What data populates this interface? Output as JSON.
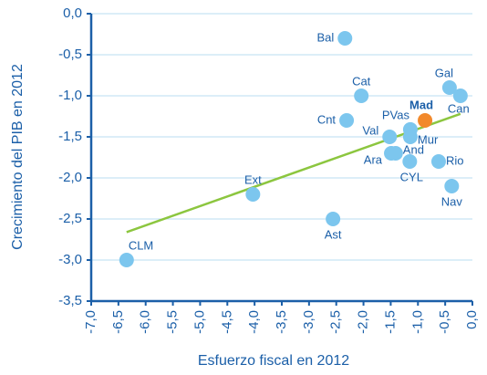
{
  "chart_data": {
    "type": "scatter",
    "x_label": "Esfuerzo fiscal en 2012",
    "y_label": "Crecimiento del PIB en 2012",
    "series": [
      {
        "color": "#7cc6ee",
        "labels": [
          "Bal",
          "Cat",
          "Cnt",
          "Gal",
          "Can",
          "Mad",
          "PVas",
          "Val",
          "Mur",
          "And",
          "Ara",
          "CYL",
          "Rio",
          "Nav",
          "Ext",
          "Ast",
          "CLM"
        ],
        "x": [
          -2.34,
          -2.04,
          -2.31,
          -0.42,
          -0.22,
          -0.87,
          -1.14,
          -1.52,
          -1.14,
          -1.41,
          -1.49,
          -1.15,
          -0.62,
          -0.38,
          -4.03,
          -2.56,
          -6.35
        ],
        "y": [
          -0.3,
          -1.0,
          -1.3,
          -0.9,
          -1.0,
          -1.3,
          -1.41,
          -1.5,
          -1.5,
          -1.7,
          -1.7,
          -1.8,
          -1.8,
          -2.1,
          -2.2,
          -2.5,
          -3.0
        ]
      }
    ],
    "highlight": "Mad",
    "highlight_color": "#f2892b",
    "trendline": {
      "color": "#8cc63f",
      "x": [
        -6.35,
        -0.22
      ],
      "y": [
        -2.66,
        -1.22
      ]
    },
    "xlim": [
      -7.0,
      0.0
    ],
    "xticks": [
      {
        "value": -7.0,
        "label": "-7,0"
      },
      {
        "value": -6.5,
        "label": "-6,5"
      },
      {
        "value": -6.0,
        "label": "-6,0"
      },
      {
        "value": -5.5,
        "label": "-5,5"
      },
      {
        "value": -5.0,
        "label": "-5,0"
      },
      {
        "value": -4.5,
        "label": "-4,5"
      },
      {
        "value": -4.0,
        "label": "-4,0"
      },
      {
        "value": -3.5,
        "label": "-3,5"
      },
      {
        "value": -3.0,
        "label": "-3,0"
      },
      {
        "value": -2.5,
        "label": "-2,5"
      },
      {
        "value": -2.0,
        "label": "-2,0"
      },
      {
        "value": -1.5,
        "label": "-1,5"
      },
      {
        "value": -1.0,
        "label": "-1,0"
      },
      {
        "value": -0.5,
        "label": "-0,5"
      },
      {
        "value": 0.0,
        "label": "0,0"
      }
    ],
    "ylim": [
      -3.5,
      0.0
    ],
    "yticks": [
      {
        "value": 0.0,
        "label": "0,0"
      },
      {
        "value": -0.5,
        "label": "-0,5"
      },
      {
        "value": -1.0,
        "label": "-1,0"
      },
      {
        "value": -1.5,
        "label": "-1,5"
      },
      {
        "value": -2.0,
        "label": "-2,0"
      },
      {
        "value": -2.5,
        "label": "-2,5"
      },
      {
        "value": -3.0,
        "label": "-3,0"
      },
      {
        "value": -3.5,
        "label": "-3,5"
      }
    ],
    "grid": true
  }
}
